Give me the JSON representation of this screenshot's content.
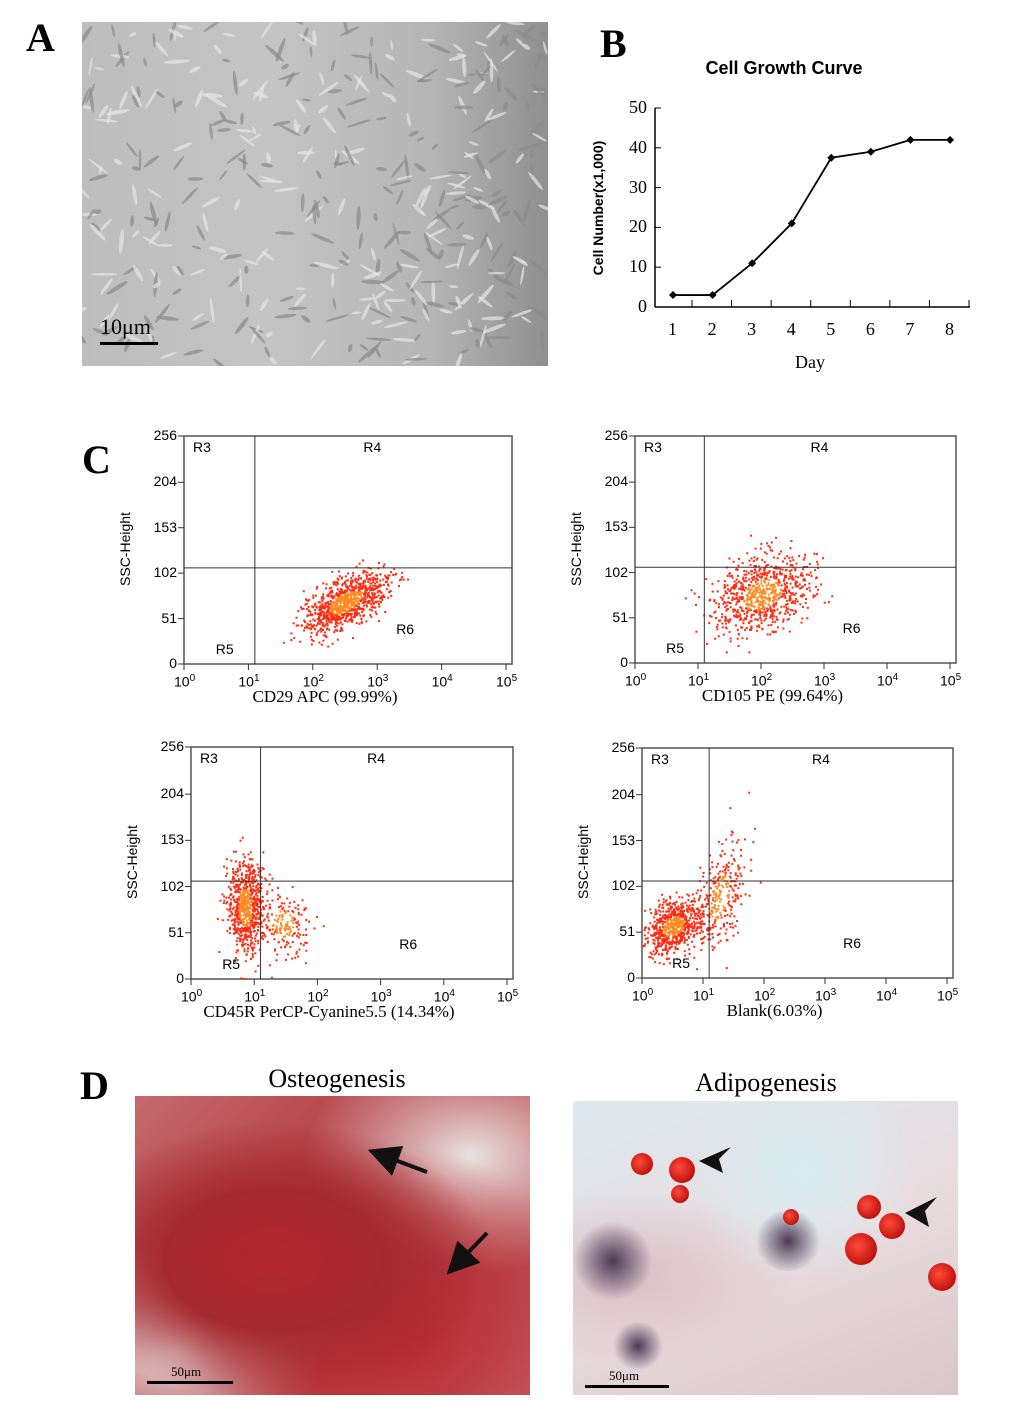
{
  "panels": {
    "a": {
      "label": "A",
      "scale_bar": "10μm"
    },
    "b": {
      "label": "B"
    },
    "c": {
      "label": "C"
    },
    "d": {
      "label": "D",
      "osteo_title": "Osteogenesis",
      "adipo_title": "Adipogenesis",
      "osteo_scale": "50μm",
      "adipo_scale": "50μm"
    }
  },
  "chart_data": [
    {
      "type": "line",
      "title": "Cell Growth Curve",
      "xlabel": "Day",
      "ylabel": "Cell Number(x1,000)",
      "x": [
        1,
        2,
        3,
        4,
        5,
        6,
        7,
        8
      ],
      "values": [
        3,
        3,
        11,
        21,
        37.5,
        39,
        42,
        42
      ],
      "ylim": [
        0,
        50
      ],
      "yticks": [
        "0",
        "10",
        "20",
        "30",
        "40",
        "50"
      ],
      "xticks": [
        "1",
        "2",
        "3",
        "4",
        "5",
        "6",
        "7",
        "8"
      ],
      "color": "#000000",
      "grid": false
    },
    {
      "type": "scatter",
      "xlabel": "CD29 APC (99.99%)",
      "ylabel": "SSC-Height",
      "xscale": "log",
      "xlim": [
        1,
        100000
      ],
      "ylim": [
        0,
        256
      ],
      "yticks": [
        "0",
        "51",
        "102",
        "153",
        "204",
        "256"
      ],
      "xticks": [
        "10^0",
        "10^1",
        "10^2",
        "10^3",
        "10^4",
        "10^5"
      ],
      "gate_x": 12.6,
      "gate_y": 108,
      "quadrants": [
        "R3",
        "R4",
        "R5",
        "R6"
      ],
      "color": "#ff2a10"
    },
    {
      "type": "scatter",
      "xlabel": "CD105 PE (99.64%)",
      "ylabel": "SSC-Height",
      "xscale": "log",
      "xlim": [
        1,
        100000
      ],
      "ylim": [
        0,
        256
      ],
      "yticks": [
        "0",
        "51",
        "102",
        "153",
        "204",
        "256"
      ],
      "xticks": [
        "10^0",
        "10^1",
        "10^2",
        "10^3",
        "10^4",
        "10^5"
      ],
      "gate_x": 12.6,
      "gate_y": 108,
      "quadrants": [
        "R3",
        "R4",
        "R5",
        "R6"
      ],
      "color": "#ff2a10"
    },
    {
      "type": "scatter",
      "xlabel": "CD45R PerCP-Cyanine5.5 (14.34%)",
      "ylabel": "SSC-Height",
      "xscale": "log",
      "xlim": [
        1,
        100000
      ],
      "ylim": [
        0,
        256
      ],
      "yticks": [
        "0",
        "51",
        "102",
        "153",
        "204",
        "256"
      ],
      "xticks": [
        "10^0",
        "10^1",
        "10^2",
        "10^3",
        "10^4",
        "10^5"
      ],
      "gate_x": 12.6,
      "gate_y": 108,
      "quadrants": [
        "R3",
        "R4",
        "R5",
        "R6"
      ],
      "color": "#ff2a10"
    },
    {
      "type": "scatter",
      "xlabel": "Blank(6.03%)",
      "ylabel": "SSC-Height",
      "xscale": "log",
      "xlim": [
        1,
        100000
      ],
      "ylim": [
        0,
        256
      ],
      "yticks": [
        "0",
        "51",
        "102",
        "153",
        "204",
        "256"
      ],
      "xticks": [
        "10^0",
        "10^1",
        "10^2",
        "10^3",
        "10^4",
        "10^5"
      ],
      "gate_x": 12.6,
      "gate_y": 108,
      "quadrants": [
        "R3",
        "R4",
        "R5",
        "R6"
      ],
      "color": "#ff2a10"
    }
  ]
}
